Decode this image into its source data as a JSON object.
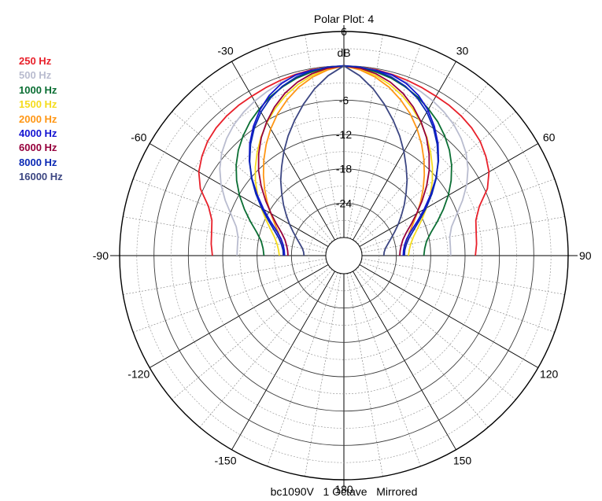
{
  "chart_data": {
    "type": "polar",
    "title": "Polar Plot: 4",
    "footer": "bc1090V   1 Octave   Mirrored",
    "radial_unit": "dB",
    "radial_ticks": [
      "6",
      "-6",
      "-12",
      "-18",
      "-24"
    ],
    "radial_range": [
      -30,
      6
    ],
    "radial_gridlines": [
      6,
      3,
      0,
      -3,
      -6,
      -9,
      -12,
      -15,
      -18,
      -21,
      -24,
      -27
    ],
    "angle_ticks": [
      {
        "angle": -30,
        "label": "-30"
      },
      {
        "angle": 30,
        "label": "30"
      },
      {
        "angle": -60,
        "label": "-60"
      },
      {
        "angle": 60,
        "label": "60"
      },
      {
        "angle": -90,
        "label": "-90"
      },
      {
        "angle": 90,
        "label": "90"
      },
      {
        "angle": -120,
        "label": "-120"
      },
      {
        "angle": 120,
        "label": "120"
      },
      {
        "angle": -150,
        "label": "-150"
      },
      {
        "angle": 150,
        "label": "150"
      },
      {
        "angle": 180,
        "label": "180"
      }
    ],
    "angle_grid_step": 10,
    "mirrored": true,
    "angles": [
      0,
      5,
      10,
      15,
      20,
      25,
      30,
      35,
      40,
      45,
      50,
      55,
      60,
      65,
      70,
      75,
      80,
      85,
      90
    ],
    "series": [
      {
        "name": "250 Hz",
        "color": "#e8202a",
        "values": [
          0.0,
          -0.1,
          -0.2,
          -0.4,
          -0.6,
          -0.8,
          -1.0,
          -1.1,
          -1.3,
          -1.6,
          -2.1,
          -2.9,
          -3.9,
          -5.5,
          -8.0,
          -9.3,
          -9.7,
          -9.9,
          -10.2
        ]
      },
      {
        "name": "500 Hz",
        "color": "#b9bccf",
        "values": [
          0.0,
          -0.1,
          -0.3,
          -0.6,
          -1.0,
          -1.5,
          -2.0,
          -2.6,
          -3.3,
          -4.2,
          -5.3,
          -6.7,
          -8.4,
          -10.3,
          -12.2,
          -13.7,
          -14.4,
          -14.5,
          -14.5
        ]
      },
      {
        "name": "1000 Hz",
        "color": "#0a6e33",
        "values": [
          0.0,
          -0.2,
          -0.6,
          -1.1,
          -1.8,
          -2.6,
          -3.6,
          -4.6,
          -5.8,
          -7.1,
          -8.6,
          -10.3,
          -12.1,
          -14.0,
          -15.8,
          -17.4,
          -18.5,
          -19.0,
          -19.2
        ]
      },
      {
        "name": "1500 Hz",
        "color": "#f5dc1e",
        "values": [
          0.0,
          -0.5,
          -1.2,
          -2.2,
          -3.4,
          -4.8,
          -6.3,
          -7.9,
          -9.6,
          -11.3,
          -13.0,
          -14.8,
          -16.5,
          -18.1,
          -19.5,
          -20.6,
          -21.3,
          -21.7,
          -21.9
        ]
      },
      {
        "name": "2000 Hz",
        "color": "#ff9614",
        "values": [
          0.0,
          -0.6,
          -1.5,
          -2.7,
          -4.2,
          -5.8,
          -7.6,
          -9.5,
          -11.4,
          -13.3,
          -15.1,
          -16.8,
          -18.4,
          -19.8,
          -20.9,
          -21.7,
          -22.2,
          -22.5,
          -22.6
        ]
      },
      {
        "name": "4000 Hz",
        "color": "#1414d2",
        "values": [
          0.0,
          -0.2,
          -0.3,
          -0.5,
          -1.2,
          -2.3,
          -3.8,
          -5.6,
          -7.6,
          -9.8,
          -12.2,
          -14.7,
          -17.0,
          -19.0,
          -20.7,
          -21.8,
          -22.4,
          -22.7,
          -22.8
        ]
      },
      {
        "name": "6000 Hz",
        "color": "#96003c",
        "values": [
          0.0,
          -0.3,
          -0.9,
          -1.8,
          -3.0,
          -4.5,
          -6.2,
          -8.0,
          -10.0,
          -12.1,
          -14.3,
          -16.5,
          -18.5,
          -20.2,
          -21.6,
          -22.5,
          -23.0,
          -23.3,
          -23.4
        ]
      },
      {
        "name": "8000 Hz",
        "color": "#0a28b4",
        "values": [
          0.0,
          -0.1,
          -0.4,
          -0.9,
          -1.7,
          -2.8,
          -4.2,
          -5.9,
          -7.8,
          -9.9,
          -12.1,
          -14.4,
          -16.6,
          -18.6,
          -20.2,
          -21.4,
          -22.1,
          -22.5,
          -22.6
        ]
      },
      {
        "name": "16000 Hz",
        "color": "#3c4682",
        "values": [
          0.0,
          -1.6,
          -3.6,
          -5.8,
          -8.0,
          -10.1,
          -12.2,
          -14.2,
          -16.0,
          -17.8,
          -19.4,
          -20.9,
          -22.2,
          -23.4,
          -24.4,
          -25.2,
          -25.8,
          -26.1,
          -26.2
        ]
      }
    ]
  },
  "legend": [
    {
      "label": "250 Hz",
      "color": "#e8202a"
    },
    {
      "label": "500 Hz",
      "color": "#b9bccf"
    },
    {
      "label": "1000 Hz",
      "color": "#0a6e33"
    },
    {
      "label": "1500 Hz",
      "color": "#f5dc1e"
    },
    {
      "label": "2000 Hz",
      "color": "#ff9614"
    },
    {
      "label": "4000 Hz",
      "color": "#1414d2"
    },
    {
      "label": "6000 Hz",
      "color": "#96003c"
    },
    {
      "label": "8000 Hz",
      "color": "#0a28b4"
    },
    {
      "label": "16000 Hz",
      "color": "#3c4682"
    }
  ]
}
